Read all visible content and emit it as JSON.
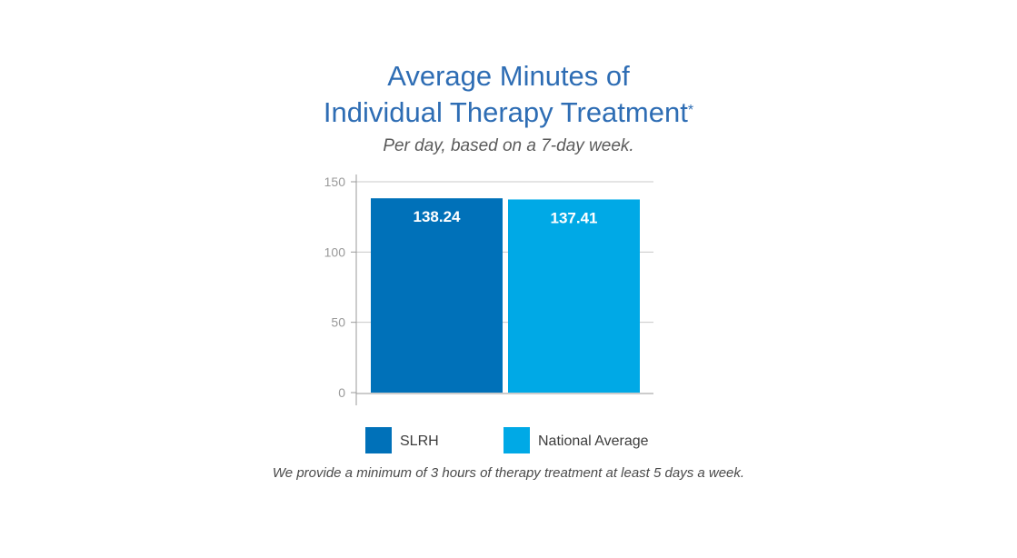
{
  "header": {
    "title_line1": "Average Minutes of",
    "title_line2": "Individual Therapy Treatment",
    "title_mark": "*",
    "subtitle": "Per day, based on a 7-day week."
  },
  "chart_data": {
    "type": "bar",
    "categories": [
      "SLRH",
      "National Average"
    ],
    "values": [
      138.24,
      137.41
    ],
    "value_labels": [
      "138.24",
      "137.41"
    ],
    "colors": [
      "#0071b9",
      "#00a9e6"
    ],
    "ylim": [
      0,
      150
    ],
    "yticks": [
      0,
      50,
      100,
      150
    ],
    "ytick_labels": [
      "0",
      "50",
      "100",
      "150"
    ],
    "grid": true,
    "legend": [
      {
        "label": "SLRH",
        "color": "#0071b9"
      },
      {
        "label": "National Average",
        "color": "#00a9e6"
      }
    ],
    "legend_position": "bottom"
  },
  "footnote": "We provide a minimum of 3 hours of therapy treatment at least 5 days a week."
}
